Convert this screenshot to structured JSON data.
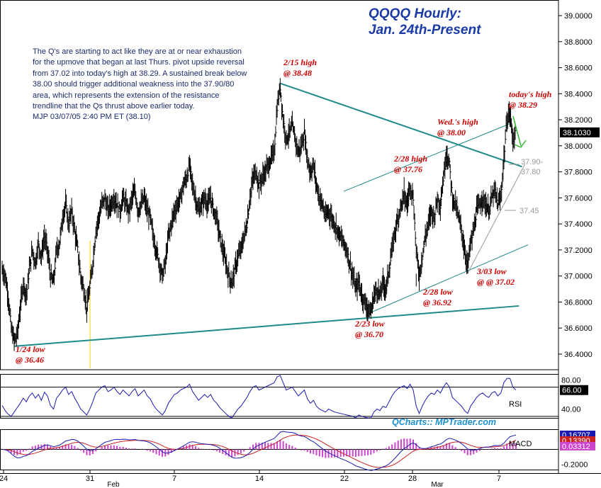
{
  "title_lines": [
    "QQQQ Hourly:",
    "Jan. 24th-Present"
  ],
  "commentary": [
    "The Q's are starting to act like they are at or near exhaustion",
    "for the upmove that began at last Thurs. pivot upside reversal",
    "from 37.02 into today's high at 38.29. A sustained break below",
    "38.00 should trigger additional weakness into the 37.90/80",
    "area, which represents the extension of the resistance",
    "trendline that the Qs thrust above earlier today.",
    "MJP 03/07/05 2:40 PM ET (38.10)"
  ],
  "credit": "QCharts:: MPTrader.com",
  "colors": {
    "bars": "#000000",
    "trendline": "#1f8a8a",
    "annotation": "#cc0000",
    "rsi": "#1a1ab0",
    "macd_line": "#1a1ab0",
    "macd_signal": "#cc2222",
    "macd_hist": "#cc44cc",
    "title": "#1a3aa8",
    "credit": "#1a8fd0",
    "target_text": "#999999",
    "arrow": "#33bb33",
    "price_box": "#000000"
  },
  "chart_data": {
    "type": "ohlc",
    "symbol": "QQQQ",
    "interval": "hourly",
    "ylim": [
      36.28,
      39.12
    ],
    "y_ticks": [
      "39.0000",
      "38.8000",
      "38.6000",
      "38.4000",
      "38.2000",
      "38.0000",
      "37.8000",
      "37.6000",
      "37.4000",
      "37.2000",
      "37.0000",
      "36.8000",
      "36.6000",
      "36.4000"
    ],
    "last_price": "38.1030",
    "x_day_labels": [
      "24",
      "31",
      "7",
      "14",
      "22",
      "28",
      "7"
    ],
    "x_month_labels": [
      "Feb",
      "Mar"
    ],
    "annotations": [
      {
        "label": "1/24 low",
        "value": "@ 36.46"
      },
      {
        "label": "2/15 high",
        "value": "@ 38.48"
      },
      {
        "label": "2/23 low",
        "value": "@ 36.70"
      },
      {
        "label": "2/28 high",
        "value": "@ 37.76"
      },
      {
        "label": "2/28 low",
        "value": "@ 36.92"
      },
      {
        "label": "Wed.'s high",
        "value": "@ 38.00"
      },
      {
        "label": "3/03 low",
        "value": "@ @ 37.02"
      },
      {
        "label": "today's high",
        "value": "@ 38.29"
      }
    ],
    "target_labels": [
      "37.90-",
      "37.80",
      "37.45"
    ],
    "key_points": [
      {
        "label": "1/24 low",
        "value": 36.46
      },
      {
        "label": "2/15 high",
        "value": 38.48
      },
      {
        "label": "2/23 low",
        "value": 36.7
      },
      {
        "label": "2/28 high",
        "value": 37.76
      },
      {
        "label": "2/28 low",
        "value": 36.92
      },
      {
        "label": "Wed.'s high",
        "value": 38.0
      },
      {
        "label": "3/03 low",
        "value": 37.02
      },
      {
        "label": "today's high",
        "value": 38.29
      }
    ],
    "path": [
      [
        0,
        37.05
      ],
      [
        1,
        37.0
      ],
      [
        2,
        36.85
      ],
      [
        3,
        36.6
      ],
      [
        4,
        36.5
      ],
      [
        5,
        36.55
      ],
      [
        6,
        36.75
      ],
      [
        7,
        36.95
      ],
      [
        8,
        36.85
      ],
      [
        9,
        37.05
      ],
      [
        10,
        37.2
      ],
      [
        11,
        37.1
      ],
      [
        12,
        37.25
      ],
      [
        13,
        37.15
      ],
      [
        14,
        37.3
      ],
      [
        15,
        37.2
      ],
      [
        16,
        37.0
      ],
      [
        17,
        36.95
      ],
      [
        18,
        37.2
      ],
      [
        19,
        37.25
      ],
      [
        20,
        37.45
      ],
      [
        21,
        37.55
      ],
      [
        22,
        37.4
      ],
      [
        23,
        37.5
      ],
      [
        24,
        37.35
      ],
      [
        25,
        37.2
      ],
      [
        26,
        37.0
      ],
      [
        27,
        36.9
      ],
      [
        28,
        36.75
      ],
      [
        29,
        36.9
      ],
      [
        30,
        37.1
      ],
      [
        31,
        37.35
      ],
      [
        32,
        37.45
      ],
      [
        33,
        37.55
      ],
      [
        34,
        37.6
      ],
      [
        35,
        37.5
      ],
      [
        36,
        37.55
      ],
      [
        37,
        37.6
      ],
      [
        38,
        37.55
      ],
      [
        39,
        37.5
      ],
      [
        40,
        37.6
      ],
      [
        41,
        37.55
      ],
      [
        42,
        37.5
      ],
      [
        43,
        37.6
      ],
      [
        44,
        37.65
      ],
      [
        45,
        37.5
      ],
      [
        46,
        37.55
      ],
      [
        47,
        37.6
      ],
      [
        48,
        37.5
      ],
      [
        49,
        37.45
      ],
      [
        50,
        37.3
      ],
      [
        51,
        37.2
      ],
      [
        52,
        37.1
      ],
      [
        53,
        37.0
      ],
      [
        54,
        37.1
      ],
      [
        55,
        37.3
      ],
      [
        56,
        37.4
      ],
      [
        57,
        37.5
      ],
      [
        58,
        37.55
      ],
      [
        59,
        37.6
      ],
      [
        60,
        37.7
      ],
      [
        61,
        37.75
      ],
      [
        62,
        37.85
      ],
      [
        63,
        37.7
      ],
      [
        64,
        37.6
      ],
      [
        65,
        37.5
      ],
      [
        66,
        37.55
      ],
      [
        67,
        37.6
      ],
      [
        68,
        37.55
      ],
      [
        69,
        37.6
      ],
      [
        70,
        37.5
      ],
      [
        71,
        37.45
      ],
      [
        72,
        37.3
      ],
      [
        73,
        37.2
      ],
      [
        74,
        37.1
      ],
      [
        75,
        37.0
      ],
      [
        76,
        36.95
      ],
      [
        77,
        37.05
      ],
      [
        78,
        37.15
      ],
      [
        79,
        37.2
      ],
      [
        80,
        37.3
      ],
      [
        81,
        37.4
      ],
      [
        82,
        37.6
      ],
      [
        83,
        37.75
      ],
      [
        84,
        37.8
      ],
      [
        85,
        37.7
      ],
      [
        86,
        37.75
      ],
      [
        87,
        37.8
      ],
      [
        88,
        37.85
      ],
      [
        89,
        37.9
      ],
      [
        90,
        37.95
      ],
      [
        91,
        38.3
      ],
      [
        92,
        38.45
      ],
      [
        93,
        38.2
      ],
      [
        94,
        38.05
      ],
      [
        95,
        38.1
      ],
      [
        96,
        38.15
      ],
      [
        97,
        38.05
      ],
      [
        98,
        37.95
      ],
      [
        99,
        38.0
      ],
      [
        100,
        38.1
      ],
      [
        101,
        37.9
      ],
      [
        102,
        37.8
      ],
      [
        103,
        37.85
      ],
      [
        104,
        37.7
      ],
      [
        105,
        37.6
      ],
      [
        106,
        37.55
      ],
      [
        107,
        37.45
      ],
      [
        108,
        37.5
      ],
      [
        109,
        37.45
      ],
      [
        110,
        37.4
      ],
      [
        111,
        37.35
      ],
      [
        112,
        37.3
      ],
      [
        113,
        37.25
      ],
      [
        114,
        37.2
      ],
      [
        115,
        37.1
      ],
      [
        116,
        37.0
      ],
      [
        117,
        36.9
      ],
      [
        118,
        36.95
      ],
      [
        119,
        36.85
      ],
      [
        120,
        36.8
      ],
      [
        121,
        36.75
      ],
      [
        122,
        36.72
      ],
      [
        123,
        36.85
      ],
      [
        124,
        36.9
      ],
      [
        125,
        36.85
      ],
      [
        126,
        36.95
      ],
      [
        127,
        36.9
      ],
      [
        128,
        37.05
      ],
      [
        129,
        37.2
      ],
      [
        130,
        37.35
      ],
      [
        131,
        37.45
      ],
      [
        132,
        37.55
      ],
      [
        133,
        37.6
      ],
      [
        134,
        37.55
      ],
      [
        135,
        37.7
      ],
      [
        136,
        37.6
      ],
      [
        137,
        37.2
      ],
      [
        138,
        37.0
      ],
      [
        139,
        37.15
      ],
      [
        140,
        37.3
      ],
      [
        141,
        37.4
      ],
      [
        142,
        37.5
      ],
      [
        143,
        37.45
      ],
      [
        144,
        37.6
      ],
      [
        145,
        37.55
      ],
      [
        146,
        37.75
      ],
      [
        147,
        37.95
      ],
      [
        148,
        37.85
      ],
      [
        149,
        37.6
      ],
      [
        150,
        37.55
      ],
      [
        151,
        37.45
      ],
      [
        152,
        37.35
      ],
      [
        153,
        37.2
      ],
      [
        154,
        37.08
      ],
      [
        155,
        37.25
      ],
      [
        156,
        37.35
      ],
      [
        157,
        37.5
      ],
      [
        158,
        37.55
      ],
      [
        159,
        37.6
      ],
      [
        160,
        37.55
      ],
      [
        161,
        37.5
      ],
      [
        162,
        37.6
      ],
      [
        163,
        37.65
      ],
      [
        164,
        37.55
      ],
      [
        165,
        37.6
      ],
      [
        166,
        37.9
      ],
      [
        167,
        38.2
      ],
      [
        168,
        38.25
      ],
      [
        169,
        38.05
      ],
      [
        170,
        38.1
      ]
    ],
    "trendlines": [
      {
        "name": "support",
        "from": [
          4,
          36.46
        ],
        "to": [
          171,
          36.77
        ]
      },
      {
        "name": "resistance",
        "from": [
          92,
          38.48
        ],
        "to": [
          172,
          37.84
        ]
      },
      {
        "name": "channel-upper",
        "from": [
          113,
          37.65
        ],
        "to": [
          168,
          38.17
        ]
      },
      {
        "name": "channel-lower",
        "from": [
          122,
          36.72
        ],
        "to": [
          174,
          37.24
        ]
      },
      {
        "name": "uptrend",
        "from": [
          154,
          37.02
        ],
        "to": [
          173,
          37.86
        ]
      }
    ],
    "rsi": {
      "label": "RSI",
      "ylim": [
        28,
        88
      ],
      "ticks": [
        "80.00",
        "40.00"
      ],
      "levels": [
        70,
        30
      ],
      "last": "66.00",
      "values": [
        45,
        38,
        33,
        30,
        36,
        42,
        48,
        55,
        50,
        58,
        62,
        55,
        60,
        52,
        63,
        58,
        45,
        40,
        55,
        60,
        66,
        70,
        60,
        64,
        55,
        48,
        40,
        36,
        32,
        40,
        50,
        62,
        66,
        70,
        72,
        64,
        66,
        70,
        64,
        60,
        66,
        62,
        58,
        64,
        68,
        58,
        62,
        66,
        58,
        54,
        46,
        40,
        36,
        32,
        38,
        48,
        54,
        60,
        62,
        66,
        68,
        70,
        74,
        64,
        58,
        52,
        56,
        60,
        56,
        60,
        52,
        48,
        42,
        38,
        34,
        30,
        28,
        34,
        40,
        44,
        50,
        56,
        64,
        70,
        72,
        66,
        68,
        70,
        72,
        74,
        76,
        84,
        86,
        76,
        66,
        68,
        70,
        64,
        58,
        62,
        66,
        54,
        48,
        52,
        44,
        40,
        38,
        36,
        40,
        38,
        36,
        35,
        34,
        33,
        32,
        31,
        30,
        28,
        32,
        30,
        29,
        28,
        28,
        36,
        40,
        38,
        44,
        42,
        50,
        58,
        64,
        68,
        70,
        72,
        68,
        74,
        66,
        44,
        34,
        44,
        52,
        58,
        62,
        60,
        66,
        62,
        70,
        76,
        70,
        56,
        52,
        48,
        44,
        38,
        34,
        44,
        50,
        56,
        60,
        62,
        58,
        56,
        62,
        64,
        58,
        62,
        76,
        82,
        82,
        70,
        66
      ]
    },
    "macd": {
      "label": "MACD",
      "ylim": [
        -0.27,
        0.27
      ],
      "ticks": [
        "0.2000",
        "-0.2000"
      ],
      "last_values": [
        "0.16707",
        "0.13390",
        "0.03312"
      ],
      "zero_line": 0
    }
  }
}
